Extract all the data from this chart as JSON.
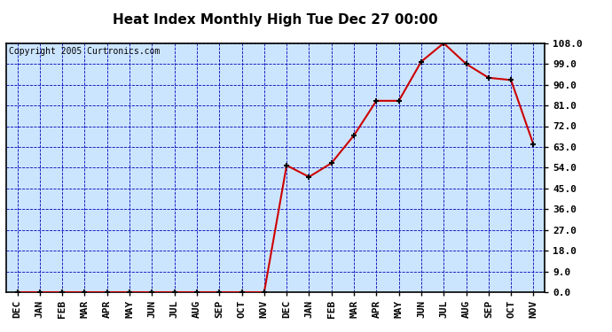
{
  "title": "Heat Index Monthly High Tue Dec 27 00:00",
  "copyright": "Copyright 2005 Curtronics.com",
  "x_labels": [
    "DEC",
    "JAN",
    "FEB",
    "MAR",
    "APR",
    "MAY",
    "JUN",
    "JUL",
    "AUG",
    "SEP",
    "OCT",
    "NOV",
    "DEC",
    "JAN",
    "FEB",
    "MAR",
    "APR",
    "MAY",
    "JUN",
    "JUL",
    "AUG",
    "SEP",
    "OCT",
    "NOV"
  ],
  "y_values": [
    0.0,
    0.0,
    0.0,
    0.0,
    0.0,
    0.0,
    0.0,
    0.0,
    0.0,
    0.0,
    0.0,
    0.0,
    55.0,
    50.0,
    56.0,
    68.0,
    83.0,
    83.0,
    100.0,
    108.0,
    99.0,
    93.0,
    92.0,
    64.0
  ],
  "line_color": "#cc0000",
  "marker": "+",
  "marker_size": 5,
  "marker_color": "#000000",
  "bg_color": "#cce5ff",
  "plot_bg_color": "#cce5ff",
  "outer_bg_color": "#ffffff",
  "grid_color": "#0000bb",
  "border_color": "#000000",
  "title_fontsize": 11,
  "copyright_fontsize": 7,
  "tick_fontsize": 8,
  "ylim": [
    0.0,
    108.0
  ],
  "yticks": [
    0.0,
    9.0,
    18.0,
    27.0,
    36.0,
    45.0,
    54.0,
    63.0,
    72.0,
    81.0,
    90.0,
    99.0,
    108.0
  ]
}
